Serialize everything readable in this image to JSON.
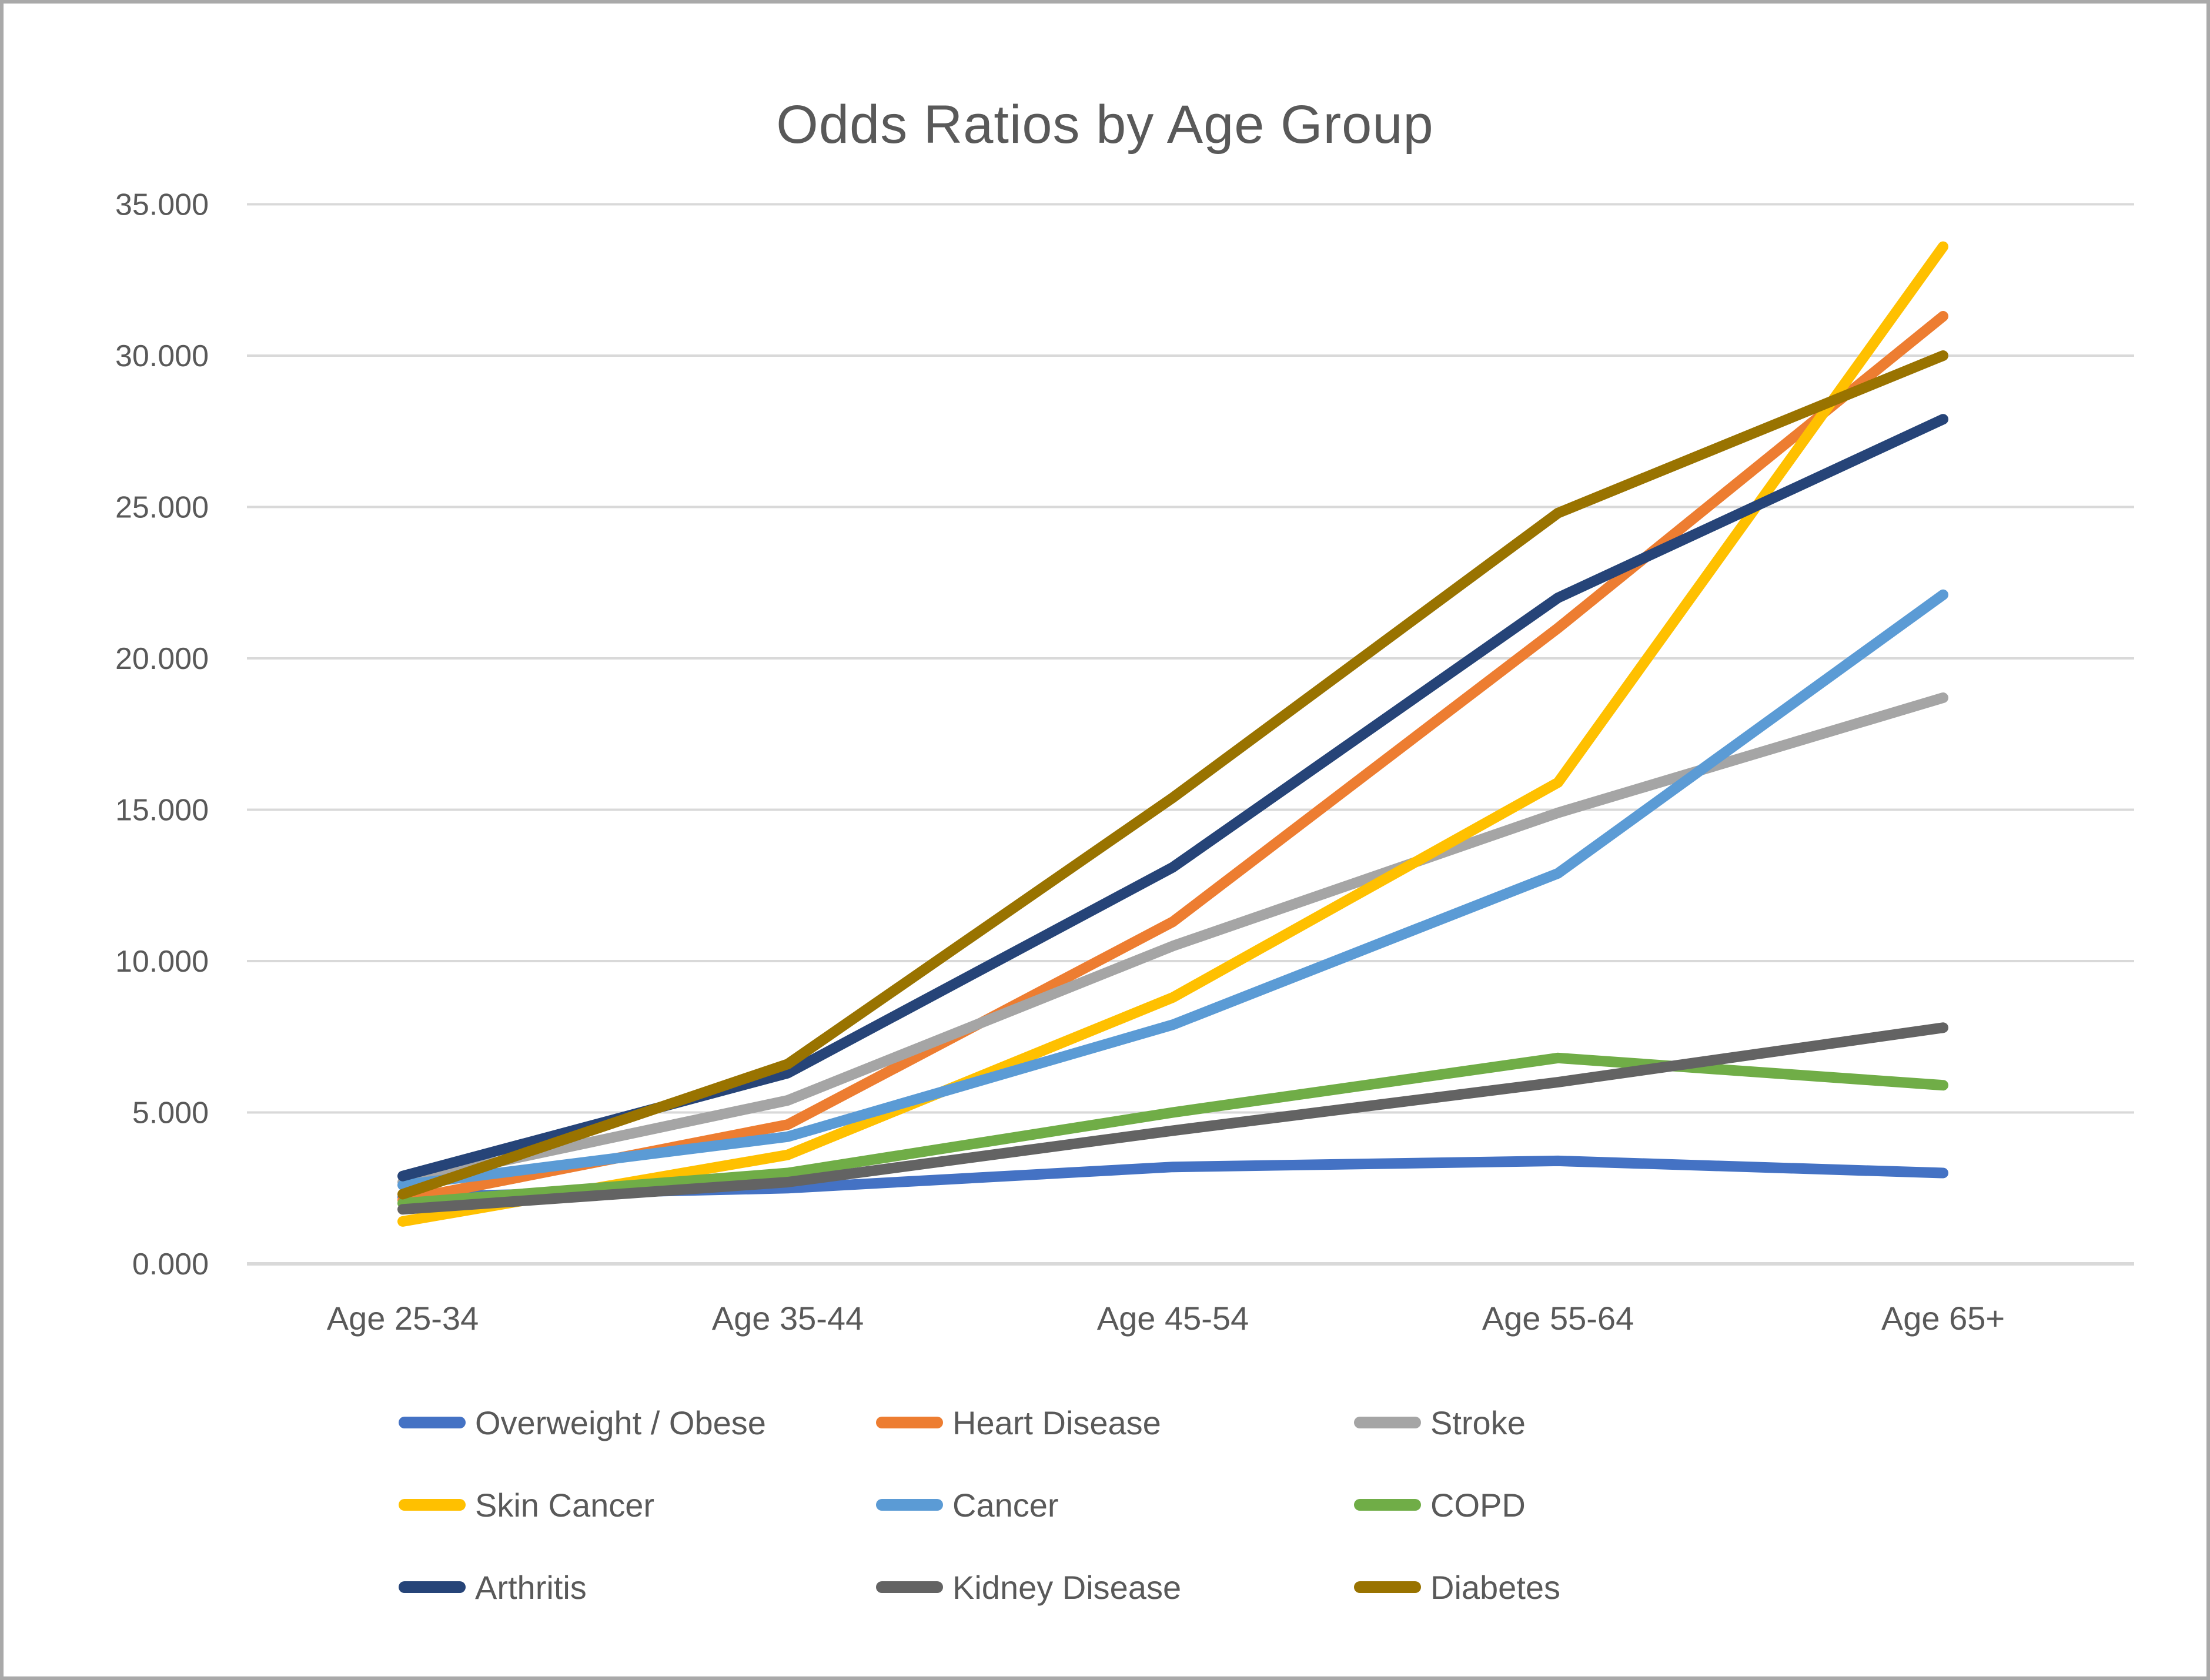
{
  "chart_data": {
    "type": "line",
    "title": "Odds Ratios by Age Group",
    "categories": [
      "Age 25-34",
      "Age 35-44",
      "Age 45-54",
      "Age 55-64",
      "Age 65+"
    ],
    "series": [
      {
        "name": "Overweight / Obese",
        "color": "#4472C4",
        "values": [
          2.2,
          2.5,
          3.2,
          3.4,
          3.0
        ]
      },
      {
        "name": "Heart Disease",
        "color": "#ED7D31",
        "values": [
          2.1,
          4.6,
          11.3,
          21.0,
          31.3
        ]
      },
      {
        "name": "Stroke",
        "color": "#A5A5A5",
        "values": [
          2.7,
          5.4,
          10.5,
          14.9,
          18.7
        ]
      },
      {
        "name": "Skin Cancer",
        "color": "#FFC000",
        "values": [
          1.4,
          3.6,
          8.8,
          15.9,
          33.6
        ]
      },
      {
        "name": "Cancer",
        "color": "#5B9BD5",
        "values": [
          2.6,
          4.2,
          7.9,
          12.9,
          22.1
        ]
      },
      {
        "name": "COPD",
        "color": "#70AD47",
        "values": [
          2.0,
          3.0,
          5.0,
          6.8,
          5.9
        ]
      },
      {
        "name": "Arthritis",
        "color": "#264478",
        "values": [
          2.9,
          6.3,
          13.1,
          22.0,
          27.9
        ]
      },
      {
        "name": "Kidney Disease",
        "color": "#636363",
        "values": [
          1.8,
          2.7,
          4.4,
          6.0,
          7.8
        ]
      },
      {
        "name": "Diabetes",
        "color": "#997300",
        "values": [
          2.3,
          6.6,
          15.4,
          24.8,
          30.0
        ]
      }
    ],
    "xlabel": "",
    "ylabel": "",
    "ylim": [
      0,
      35
    ],
    "y_ticks": [
      {
        "value": 0,
        "label": "0.000"
      },
      {
        "value": 5,
        "label": "5.000"
      },
      {
        "value": 10,
        "label": "10.000"
      },
      {
        "value": 15,
        "label": "15.000"
      },
      {
        "value": 20,
        "label": "20.000"
      },
      {
        "value": 25,
        "label": "25.000"
      },
      {
        "value": 30,
        "label": "30.000"
      },
      {
        "value": 35,
        "label": "35.000"
      }
    ],
    "grid": true,
    "legend_position": "bottom",
    "colors": {
      "gridline": "#D9D9D9",
      "axis_line": "#D9D9D9",
      "tick_label": "#595959",
      "title_text": "#595959",
      "background": "#FFFFFF",
      "frame_border": "#A9A9A9"
    }
  }
}
